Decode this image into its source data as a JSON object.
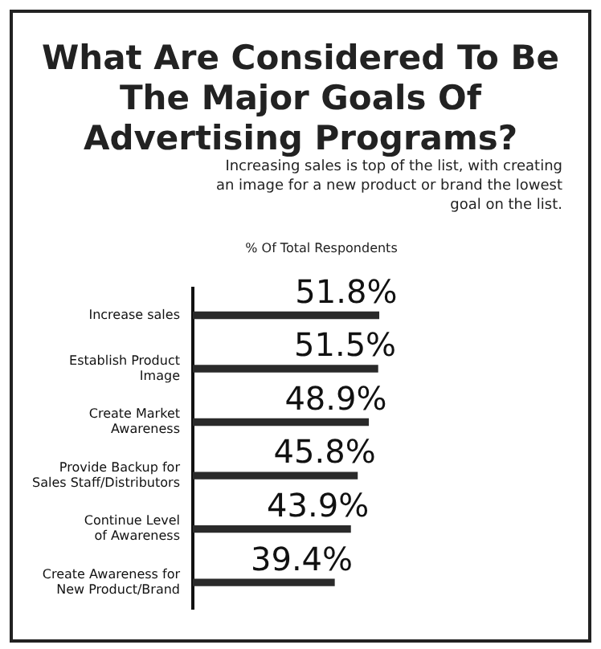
{
  "chart_data": {
    "type": "bar",
    "orientation": "horizontal",
    "title": "What Are Considered To Be The Major Goals Of Advertising Programs?",
    "subtitle": "Increasing sales is top of the list, with creating an image for a new product or brand the lowest goal on the list.",
    "xlabel": "% Of Total Respondents",
    "categories": [
      "Increase sales",
      "Establish Product Image",
      "Create Market Awareness",
      "Provide Backup for Sales Staff/Distributors",
      "Continue Level of Awareness",
      "Create Awareness for New Product/Brand"
    ],
    "values": [
      51.8,
      51.5,
      48.9,
      45.8,
      43.9,
      39.4
    ],
    "value_labels": [
      "51.8%",
      "51.5%",
      "48.9%",
      "45.8%",
      "43.9%",
      "39.4%"
    ],
    "color": "#2a2a2a",
    "tick_labels": "y"
  }
}
